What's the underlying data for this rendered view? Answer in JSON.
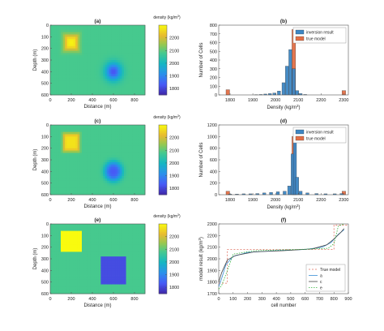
{
  "figure": {
    "colorbar_title_main": "density (kg/m",
    "colorbar_title_sup": "3",
    "colorbar_title_end": ")"
  },
  "chart_data": [
    {
      "panel": "(a)",
      "type": "heatmap",
      "xlabel": "Distance (m)",
      "ylabel": "Depth (m)",
      "xlim": [
        0,
        900
      ],
      "ylim": [
        0,
        600
      ],
      "y_reversed": true,
      "xticks": [
        0,
        200,
        400,
        600,
        800
      ],
      "yticks": [
        0,
        100,
        200,
        300,
        400,
        500,
        600
      ],
      "background_density": 2080,
      "anomalies": [
        {
          "kind": "high",
          "center": [
            200,
            150
          ],
          "peak_density": 2290
        },
        {
          "kind": "low",
          "center": [
            600,
            400
          ],
          "peak_density": 1820
        }
      ],
      "colorbar": {
        "ticks": [
          2200,
          2100,
          2000,
          1900,
          1800
        ],
        "range": [
          1750,
          2300
        ]
      }
    },
    {
      "panel": "(b)",
      "type": "bar",
      "xlabel_main": "Density (kg/m",
      "xlabel_sup": "3",
      "xlabel_end": ")",
      "ylabel": "Number of Cells",
      "xlim": [
        1750,
        2320
      ],
      "ylim": [
        0,
        800
      ],
      "xticks": [
        1800,
        1900,
        2000,
        2100,
        2200,
        2300
      ],
      "yticks": [
        0,
        100,
        200,
        300,
        400,
        500,
        600,
        700,
        800
      ],
      "legend": [
        "inversion result",
        "true model"
      ],
      "legend_position": "top-right",
      "series": [
        {
          "name": "inversion result",
          "color": "#3d86c4",
          "bins": [
            [
              1915,
              3
            ],
            [
              1935,
              5
            ],
            [
              1955,
              10
            ],
            [
              1975,
              15
            ],
            [
              1995,
              22
            ],
            [
              2015,
              45
            ],
            [
              2035,
              140
            ],
            [
              2050,
              330
            ],
            [
              2065,
              520
            ],
            [
              2080,
              300
            ],
            [
              2095,
              50
            ],
            [
              2110,
              15
            ],
            [
              2130,
              5
            ]
          ]
        },
        {
          "name": "true model",
          "color": "#e26f46",
          "bins": [
            [
              1790,
              60
            ],
            [
              2080,
              750
            ],
            [
              2300,
              50
            ]
          ]
        }
      ]
    },
    {
      "panel": "(c)",
      "type": "heatmap",
      "xlabel": "Distance (m)",
      "ylabel": "Depth (m)",
      "xlim": [
        0,
        900
      ],
      "ylim": [
        0,
        600
      ],
      "y_reversed": true,
      "xticks": [
        0,
        200,
        400,
        600,
        800
      ],
      "yticks": [
        0,
        100,
        200,
        300,
        400,
        500,
        600
      ],
      "background_density": 2080,
      "anomalies": [
        {
          "kind": "high",
          "center": [
            200,
            150
          ],
          "peak_density": 2270
        },
        {
          "kind": "low",
          "center": [
            600,
            400
          ],
          "peak_density": 1830
        }
      ],
      "colorbar": {
        "ticks": [
          2200,
          2100,
          2000,
          1900,
          1800
        ],
        "range": [
          1750,
          2300
        ]
      }
    },
    {
      "panel": "(d)",
      "type": "bar",
      "xlabel_main": "Density (kg/m",
      "xlabel_sup": "3",
      "xlabel_end": ")",
      "ylabel": "Number of Cells",
      "xlim": [
        1750,
        2320
      ],
      "ylim": [
        0,
        1200
      ],
      "xticks": [
        1800,
        1900,
        2000,
        2100,
        2200,
        2300
      ],
      "yticks": [
        0,
        200,
        400,
        600,
        800,
        1000,
        1200
      ],
      "legend": [
        "inversion result",
        "true model"
      ],
      "legend_position": "top-right",
      "series": [
        {
          "name": "inversion result",
          "color": "#3d86c4",
          "bins": [
            [
              1800,
              10
            ],
            [
              1830,
              10
            ],
            [
              1860,
              15
            ],
            [
              1890,
              15
            ],
            [
              1920,
              20
            ],
            [
              1950,
              30
            ],
            [
              1980,
              40
            ],
            [
              2010,
              50
            ],
            [
              2040,
              60
            ],
            [
              2060,
              150
            ],
            [
              2075,
              700
            ],
            [
              2085,
              1050
            ],
            [
              2095,
              300
            ],
            [
              2110,
              60
            ],
            [
              2140,
              30
            ],
            [
              2180,
              20
            ],
            [
              2220,
              15
            ],
            [
              2260,
              15
            ],
            [
              2290,
              20
            ]
          ]
        },
        {
          "name": "true model",
          "color": "#e26f46",
          "bins": [
            [
              1790,
              60
            ],
            [
              2080,
              1000
            ],
            [
              2300,
              60
            ]
          ]
        }
      ]
    },
    {
      "panel": "(e)",
      "type": "heatmap",
      "xlabel": "Distance (m)",
      "ylabel": "Depth (m)",
      "xlim": [
        0,
        900
      ],
      "ylim": [
        0,
        600
      ],
      "y_reversed": true,
      "xticks": [
        0,
        200,
        400,
        600,
        800
      ],
      "yticks": [
        0,
        100,
        200,
        300,
        400,
        500,
        600
      ],
      "background_density": 2080,
      "anomalies": [
        {
          "kind": "high",
          "center": [
            200,
            150
          ],
          "peak_density": 2300
        },
        {
          "kind": "low",
          "center": [
            600,
            400
          ],
          "peak_density": 1810
        }
      ],
      "colorbar": {
        "ticks": [
          2200,
          2100,
          2000,
          1900,
          1800
        ],
        "range": [
          1750,
          2300
        ]
      }
    },
    {
      "panel": "(f)",
      "type": "line",
      "xlabel": "cell number",
      "ylabel_main": "model result (kg/m",
      "ylabel_sup": "3",
      "ylabel_end": ")",
      "xlim": [
        0,
        900
      ],
      "ylim": [
        1700,
        2300
      ],
      "xticks": [
        0,
        100,
        200,
        300,
        400,
        500,
        600,
        700,
        800,
        900
      ],
      "yticks": [
        1700,
        1800,
        1900,
        2000,
        2100,
        2200,
        2300
      ],
      "legend_position": "bottom-right",
      "series": [
        {
          "name": "True model",
          "color": "#e07060",
          "dash": "2,2",
          "points": [
            [
              0,
              1790
            ],
            [
              60,
              1790
            ],
            [
              60,
              2080
            ],
            [
              800,
              2080
            ],
            [
              800,
              2290
            ],
            [
              900,
              2290
            ]
          ]
        },
        {
          "name": "a",
          "color": "#3a8fd6",
          "dash": "",
          "points": [
            [
              0,
              1760
            ],
            [
              20,
              1830
            ],
            [
              50,
              1950
            ],
            [
              100,
              2020
            ],
            [
              200,
              2055
            ],
            [
              400,
              2070
            ],
            [
              600,
              2080
            ],
            [
              720,
              2100
            ],
            [
              780,
              2140
            ],
            [
              830,
              2210
            ],
            [
              870,
              2250
            ]
          ]
        },
        {
          "name": "c",
          "color": "#444444",
          "dash": "",
          "points": [
            [
              0,
              1800
            ],
            [
              20,
              1880
            ],
            [
              60,
              1990
            ],
            [
              120,
              2030
            ],
            [
              250,
              2060
            ],
            [
              450,
              2070
            ],
            [
              650,
              2085
            ],
            [
              750,
              2120
            ],
            [
              800,
              2170
            ],
            [
              850,
              2230
            ],
            [
              870,
              2260
            ]
          ]
        },
        {
          "name": "e",
          "color": "#33b33d",
          "dash": "1.5,1.5",
          "points": [
            [
              0,
              1740
            ],
            [
              20,
              1770
            ],
            [
              60,
              1900
            ],
            [
              100,
              2040
            ],
            [
              250,
              2070
            ],
            [
              550,
              2080
            ],
            [
              760,
              2090
            ],
            [
              800,
              2130
            ],
            [
              830,
              2280
            ],
            [
              870,
              2300
            ]
          ]
        }
      ]
    }
  ]
}
